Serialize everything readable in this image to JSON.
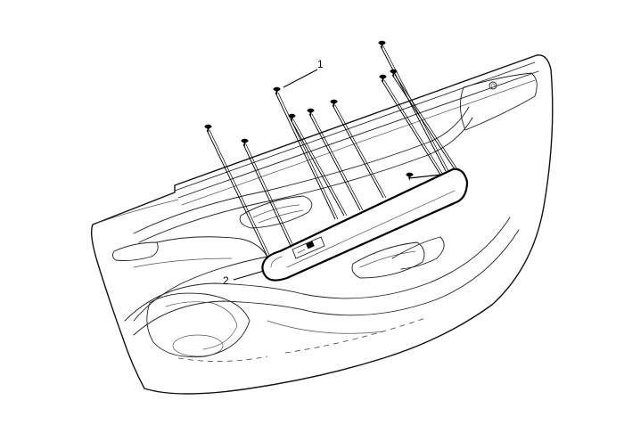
{
  "callouts": [
    {
      "id": "1",
      "label": "1"
    },
    {
      "id": "2",
      "label": "2"
    }
  ],
  "fastener_count": 10,
  "colors": {
    "line": "#000000",
    "background": "#ffffff"
  }
}
